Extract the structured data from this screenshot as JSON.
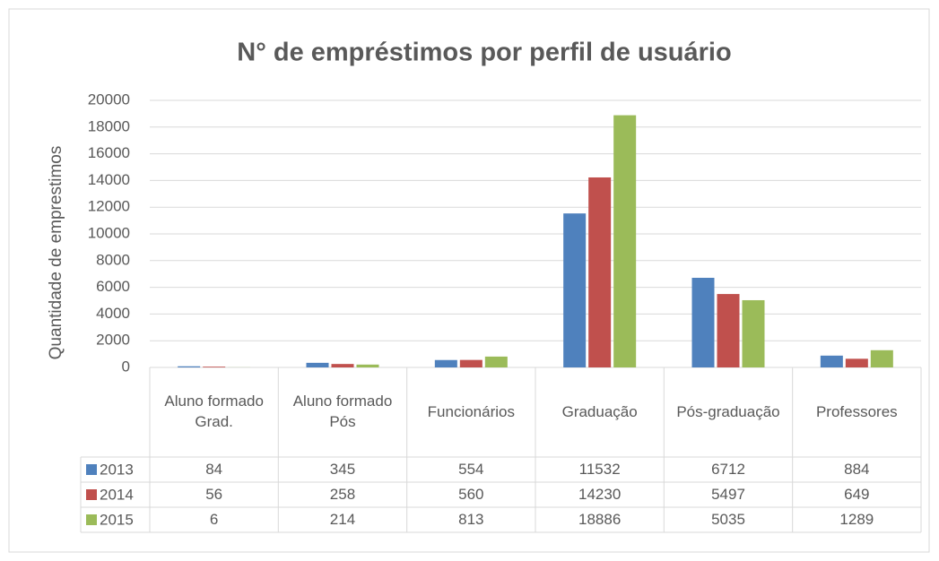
{
  "chart_data": {
    "type": "bar",
    "title": "N° de empréstimos por perfil de usuário",
    "y_label": "Quantidade de emprestimos",
    "categories": [
      "Aluno formado Grad.",
      "Aluno formado Pós",
      "Funcionários",
      "Graduação",
      "Pós-graduação",
      "Professores"
    ],
    "series": [
      {
        "name": "2013",
        "color": "#4f81bd",
        "values": [
          84,
          345,
          554,
          11532,
          6712,
          884
        ]
      },
      {
        "name": "2014",
        "color": "#c0504d",
        "values": [
          56,
          258,
          560,
          14230,
          5497,
          649
        ]
      },
      {
        "name": "2015",
        "color": "#9bbb59",
        "values": [
          6,
          214,
          813,
          18886,
          5035,
          1289
        ]
      }
    ],
    "ylim": [
      0,
      20000
    ],
    "yticks": [
      0,
      2000,
      4000,
      6000,
      8000,
      10000,
      12000,
      14000,
      16000,
      18000,
      20000
    ],
    "grid": true,
    "data_table": true
  }
}
